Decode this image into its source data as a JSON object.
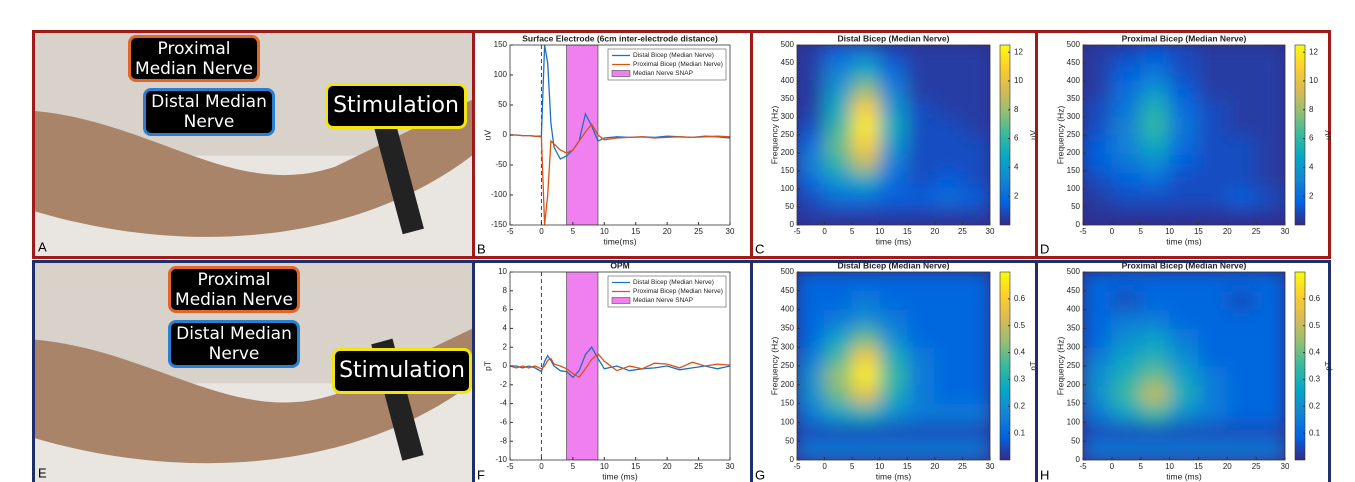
{
  "photos": [
    {
      "panel": "A",
      "labels": [
        {
          "text": "Proximal Median Nerve",
          "color": "#e0662a"
        },
        {
          "text": "Distal Median Nerve",
          "color": "#2a7fd1"
        },
        {
          "text": "Stimulation",
          "color": "#f2e313"
        }
      ]
    },
    {
      "panel": "E",
      "labels": [
        {
          "text": "Proximal Median Nerve",
          "color": "#e0662a"
        },
        {
          "text": "Distal Median Nerve",
          "color": "#2a7fd1"
        },
        {
          "text": "Stimulation",
          "color": "#f2e313"
        }
      ]
    }
  ],
  "chart_data": [
    {
      "type": "line",
      "panel": "B",
      "title": "Surface Electrode (6cm inter-electrode distance)",
      "xlabel": "time(ms)",
      "ylabel": "uV",
      "x": [
        -5,
        -4,
        -3,
        -2,
        -1,
        0,
        0.5,
        1,
        1.5,
        2,
        3,
        4,
        5,
        6,
        7,
        8,
        9,
        10,
        12,
        14,
        16,
        18,
        20,
        22,
        24,
        26,
        28,
        30
      ],
      "series": [
        {
          "name": "Distal Bicep (Median Nerve)",
          "color": "#1f6fc0",
          "values": [
            0,
            0,
            -1,
            -1,
            -2,
            -2,
            150,
            120,
            20,
            -20,
            -40,
            -35,
            -25,
            -10,
            35,
            15,
            -10,
            -5,
            -3,
            -4,
            -3,
            -4,
            -2,
            -3,
            -4,
            -2,
            -3,
            -5
          ]
        },
        {
          "name": "Proximal Bicep (Median Nerve)",
          "color": "#d95319",
          "values": [
            0,
            0,
            -1,
            -1,
            -2,
            -3,
            -150,
            -100,
            -10,
            -15,
            -25,
            -30,
            -25,
            -10,
            5,
            18,
            0,
            -8,
            -5,
            -4,
            -3,
            -5,
            -4,
            -3,
            -4,
            -3,
            -2,
            -3
          ]
        }
      ],
      "span": [
        4,
        9
      ],
      "span_name": "Median Nerve SNAP",
      "span_color": "#f080f0",
      "stim_line": 0,
      "xlim": [
        -5,
        30
      ],
      "xticks": [
        -5,
        0,
        5,
        10,
        15,
        20,
        25,
        30
      ],
      "ylim": [
        -150,
        150
      ],
      "yticks": [
        -150,
        -100,
        -50,
        0,
        50,
        100,
        150
      ]
    },
    {
      "type": "heatmap",
      "panel": "C",
      "title": "Distal Bicep (Median Nerve)",
      "xlabel": "time (ms)",
      "ylabel": "Frequency (Hz)",
      "colorbar_label": "uV",
      "colormap": "parula",
      "x": [
        -2.5,
        2.5,
        7.5,
        12.5,
        17.5,
        22.5,
        27.5
      ],
      "y": [
        25,
        75,
        125,
        175,
        225,
        275,
        325,
        375,
        425,
        475
      ],
      "z": [
        [
          0.5,
          0.5,
          0.5,
          0.5,
          0.5,
          0.5,
          0.5
        ],
        [
          1,
          2,
          2,
          1.5,
          1.5,
          2,
          1.5
        ],
        [
          2,
          4,
          5,
          2,
          1,
          1.5,
          1
        ],
        [
          3,
          6,
          9,
          3,
          1,
          1,
          1
        ],
        [
          2,
          7,
          11,
          4,
          1,
          1,
          1
        ],
        [
          1,
          6,
          12,
          5,
          1,
          1,
          0.5
        ],
        [
          0.5,
          5,
          11,
          4,
          1,
          0.5,
          0.5
        ],
        [
          0.5,
          4,
          8,
          3,
          0.5,
          0.5,
          0.5
        ],
        [
          0.5,
          3,
          5,
          2,
          0.5,
          0.5,
          0.5
        ],
        [
          0.5,
          2,
          3,
          1,
          0.5,
          0.5,
          0.5
        ]
      ],
      "clim": [
        0,
        12.5
      ],
      "cticks": [
        2,
        4,
        6,
        8,
        10,
        12
      ],
      "xlim": [
        -5,
        30
      ],
      "xticks": [
        -5,
        0,
        5,
        10,
        15,
        20,
        25,
        30
      ],
      "ylim": [
        0,
        500
      ],
      "yticks": [
        0,
        50,
        100,
        150,
        200,
        250,
        300,
        350,
        400,
        450,
        500
      ]
    },
    {
      "type": "heatmap",
      "panel": "D",
      "title": "Proximal Bicep (Median Nerve)",
      "xlabel": "time (ms)",
      "ylabel": "Frequency (Hz)",
      "colorbar_label": "uV",
      "colormap": "parula",
      "x": [
        -2.5,
        2.5,
        7.5,
        12.5,
        17.5,
        22.5,
        27.5
      ],
      "y": [
        25,
        75,
        125,
        175,
        225,
        275,
        325,
        375,
        425,
        475
      ],
      "z": [
        [
          0.3,
          0.3,
          0.3,
          0.3,
          0.3,
          0.3,
          0.3
        ],
        [
          0.5,
          1,
          1,
          1,
          1,
          1.5,
          1
        ],
        [
          1,
          1.5,
          2,
          1,
          1,
          1,
          0.5
        ],
        [
          1.5,
          2.5,
          3.5,
          1.5,
          1,
          1,
          0.5
        ],
        [
          1.5,
          3,
          5,
          2,
          1,
          1,
          0.5
        ],
        [
          1,
          3,
          6,
          2.5,
          1,
          0.5,
          0.5
        ],
        [
          1,
          2.5,
          5.5,
          2,
          1,
          0.5,
          0.5
        ],
        [
          0.5,
          2,
          4,
          1.5,
          0.5,
          0.5,
          0.5
        ],
        [
          0.5,
          1.5,
          2.5,
          1,
          0.5,
          0.5,
          0.5
        ],
        [
          0.5,
          1,
          1.5,
          1,
          0.5,
          0.5,
          0.5
        ]
      ],
      "clim": [
        0,
        12.5
      ],
      "cticks": [
        2,
        4,
        6,
        8,
        10,
        12
      ],
      "xlim": [
        -5,
        30
      ],
      "xticks": [
        -5,
        0,
        5,
        10,
        15,
        20,
        25,
        30
      ],
      "ylim": [
        0,
        500
      ],
      "yticks": [
        0,
        50,
        100,
        150,
        200,
        250,
        300,
        350,
        400,
        450,
        500
      ]
    },
    {
      "type": "line",
      "panel": "F",
      "title": "OPM",
      "xlabel": "time (ms)",
      "ylabel": "pT",
      "x": [
        -5,
        -4,
        -3,
        -2,
        -1,
        0,
        0.5,
        1,
        1.5,
        2,
        3,
        4,
        5,
        6,
        7,
        8,
        9,
        10,
        12,
        14,
        16,
        18,
        20,
        22,
        24,
        26,
        28,
        30
      ],
      "series": [
        {
          "name": "Distal Bicep (Median Nerve)",
          "color": "#1f6fc0",
          "values": [
            0,
            0,
            -0.2,
            0,
            -0.2,
            -0.6,
            0.5,
            1.1,
            0.6,
            0,
            -0.5,
            -0.6,
            -1.2,
            -0.5,
            1.2,
            2,
            0.8,
            -0.3,
            0,
            -0.5,
            -0.3,
            -0.2,
            0,
            -0.4,
            -0.2,
            0,
            -0.3,
            0
          ]
        },
        {
          "name": "Proximal Bicep (Median Nerve)",
          "color": "#d95319",
          "values": [
            0,
            -0.2,
            0,
            -0.2,
            0,
            -0.3,
            0,
            0.6,
            0.8,
            0.2,
            0,
            -0.3,
            -0.8,
            -1.2,
            -0.3,
            0.7,
            1.3,
            0.5,
            -0.5,
            0,
            -0.3,
            0.3,
            0.2,
            -0.2,
            0.4,
            0,
            0.2,
            0.1
          ]
        }
      ],
      "span": [
        4,
        9
      ],
      "span_name": "Median Nerve SNAP",
      "span_color": "#f080f0",
      "stim_line": 0,
      "xlim": [
        -5,
        30
      ],
      "xticks": [
        -5,
        0,
        5,
        10,
        15,
        20,
        25,
        30
      ],
      "ylim": [
        -10,
        10
      ],
      "yticks": [
        -10,
        -8,
        -6,
        -4,
        -2,
        0,
        2,
        4,
        6,
        8,
        10
      ]
    },
    {
      "type": "heatmap",
      "panel": "G",
      "title": "Distal Bicep (Median Nerve)",
      "xlabel": "time (ms)",
      "ylabel": "Frequency (Hz)",
      "colorbar_label": "pT",
      "colormap": "parula",
      "x": [
        -2.5,
        2.5,
        7.5,
        12.5,
        17.5,
        22.5,
        27.5
      ],
      "y": [
        25,
        75,
        125,
        175,
        225,
        275,
        325,
        375,
        425,
        475
      ],
      "z": [
        [
          0.15,
          0.15,
          0.15,
          0.15,
          0.15,
          0.15,
          0.15
        ],
        [
          0.05,
          0.05,
          0.05,
          0.05,
          0.05,
          0.05,
          0.05
        ],
        [
          0.15,
          0.25,
          0.3,
          0.2,
          0.15,
          0.15,
          0.15
        ],
        [
          0.2,
          0.4,
          0.55,
          0.3,
          0.15,
          0.1,
          0.1
        ],
        [
          0.2,
          0.45,
          0.68,
          0.35,
          0.15,
          0.1,
          0.1
        ],
        [
          0.15,
          0.35,
          0.6,
          0.3,
          0.15,
          0.1,
          0.1
        ],
        [
          0.1,
          0.25,
          0.4,
          0.2,
          0.1,
          0.1,
          0.1
        ],
        [
          0.1,
          0.15,
          0.2,
          0.15,
          0.1,
          0.1,
          0.1
        ],
        [
          0.1,
          0.1,
          0.15,
          0.1,
          0.1,
          0.1,
          0.1
        ],
        [
          0.1,
          0.1,
          0.1,
          0.1,
          0.1,
          0.1,
          0.1
        ]
      ],
      "clim": [
        0,
        0.7
      ],
      "cticks": [
        0.1,
        0.2,
        0.3,
        0.4,
        0.5,
        0.6
      ],
      "xlim": [
        -5,
        30
      ],
      "xticks": [
        -5,
        0,
        5,
        10,
        15,
        20,
        25,
        30
      ],
      "ylim": [
        0,
        500
      ],
      "yticks": [
        0,
        50,
        100,
        150,
        200,
        250,
        300,
        350,
        400,
        450,
        500
      ]
    },
    {
      "type": "heatmap",
      "panel": "H",
      "title": "Proximal Bicep (Median Nerve)",
      "xlabel": "time (ms)",
      "ylabel": "Frequency (Hz)",
      "colorbar_label": "pT",
      "colormap": "parula",
      "x": [
        -2.5,
        2.5,
        7.5,
        12.5,
        17.5,
        22.5,
        27.5
      ],
      "y": [
        25,
        75,
        125,
        175,
        225,
        275,
        325,
        375,
        425,
        475
      ],
      "z": [
        [
          0.15,
          0.15,
          0.15,
          0.15,
          0.15,
          0.15,
          0.15
        ],
        [
          0.05,
          0.05,
          0.05,
          0.05,
          0.05,
          0.05,
          0.05
        ],
        [
          0.15,
          0.25,
          0.35,
          0.2,
          0.15,
          0.1,
          0.1
        ],
        [
          0.2,
          0.35,
          0.5,
          0.3,
          0.15,
          0.1,
          0.1
        ],
        [
          0.2,
          0.3,
          0.4,
          0.25,
          0.15,
          0.1,
          0.1
        ],
        [
          0.15,
          0.25,
          0.3,
          0.2,
          0.1,
          0.1,
          0.1
        ],
        [
          0.1,
          0.2,
          0.25,
          0.15,
          0.1,
          0.1,
          0.1
        ],
        [
          0.1,
          0.15,
          0.15,
          0.1,
          0.1,
          0.1,
          0.1
        ],
        [
          0.1,
          0.05,
          0.1,
          0.1,
          0.1,
          0.05,
          0.1
        ],
        [
          0.1,
          0.1,
          0.1,
          0.1,
          0.1,
          0.1,
          0.1
        ]
      ],
      "clim": [
        0,
        0.7
      ],
      "cticks": [
        0.1,
        0.2,
        0.3,
        0.4,
        0.5,
        0.6
      ],
      "xlim": [
        -5,
        30
      ],
      "xticks": [
        -5,
        0,
        5,
        10,
        15,
        20,
        25,
        30
      ],
      "ylim": [
        0,
        500
      ],
      "yticks": [
        0,
        50,
        100,
        150,
        200,
        250,
        300,
        350,
        400,
        450,
        500
      ]
    }
  ]
}
